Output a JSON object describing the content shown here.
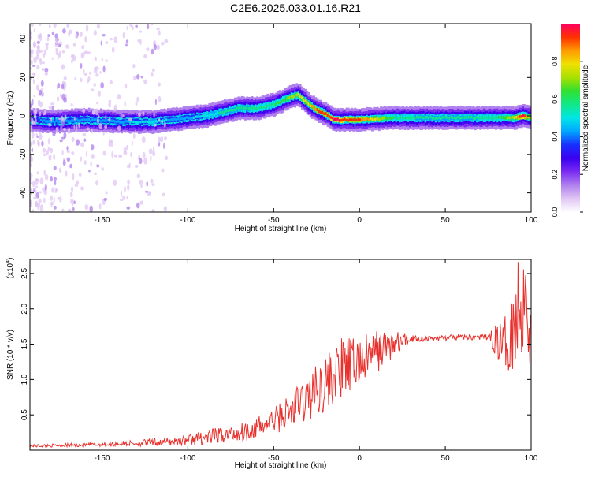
{
  "title": "C2E6.2025.033.01.16.R21",
  "colors": {
    "snr_line": "#e8302c",
    "axis": "#000000",
    "background": "#ffffff",
    "colormap": [
      "#ffffff",
      "#e0c6f4",
      "#b080ee",
      "#7a2cf2",
      "#3a00f0",
      "#1830ff",
      "#00a6ff",
      "#00e6e6",
      "#10e888",
      "#30e030",
      "#a8e000",
      "#f0e000",
      "#ff9a00",
      "#ff3000",
      "#ff0060"
    ]
  },
  "chart_data": [
    {
      "type": "heatmap",
      "name": "spectrogram",
      "xlabel": "Height of straight line (km)",
      "ylabel": "Frequency (Hz)",
      "xlim": [
        -192,
        100
      ],
      "ylim": [
        -50,
        48
      ],
      "xticks": [
        -150,
        -100,
        -50,
        0,
        50,
        100
      ],
      "yticks": [
        -40,
        -20,
        0,
        20,
        40
      ],
      "colorbar": {
        "label": "Normalized spectral amplitude",
        "range": [
          0,
          1
        ],
        "ticks": [
          0.0,
          0.2,
          0.4,
          0.6,
          0.8
        ]
      },
      "ridge": {
        "x": [
          -192,
          -180,
          -160,
          -140,
          -120,
          -110,
          -100,
          -90,
          -80,
          -70,
          -60,
          -50,
          -40,
          -36,
          -30,
          -25,
          -20,
          -15,
          -10,
          0,
          20,
          50,
          80,
          90,
          95,
          100
        ],
        "y": [
          -2,
          -3,
          -2,
          -3,
          -3,
          -2,
          -1,
          0,
          2,
          4,
          4,
          6,
          10,
          11,
          6,
          3,
          1,
          -2,
          -2,
          -2,
          -1,
          -1,
          -1,
          -1,
          0,
          -1
        ],
        "peak_amplitude": [
          0.35,
          0.45,
          0.4,
          0.45,
          0.5,
          0.45,
          0.45,
          0.5,
          0.55,
          0.55,
          0.6,
          0.6,
          0.7,
          0.75,
          0.8,
          0.9,
          0.9,
          1.0,
          0.95,
          0.9,
          0.6,
          0.55,
          0.6,
          0.75,
          1.0,
          0.6
        ]
      }
    },
    {
      "type": "line",
      "name": "snr",
      "xlabel": "Height of straight line (km)",
      "ylabel": "SNR (10 * v/v)",
      "ylabel_multiplier": "(x10",
      "ylabel_multiplier_exp": "4",
      "ylabel_multiplier_close": ")",
      "xlim": [
        -192,
        100
      ],
      "ylim": [
        0,
        2.7
      ],
      "xticks": [
        -150,
        -100,
        -50,
        0,
        50,
        100
      ],
      "yticks": [
        0.5,
        1.0,
        1.5,
        2.0,
        2.5
      ],
      "envelope": {
        "x": [
          -192,
          -150,
          -110,
          -90,
          -70,
          -55,
          -48,
          -40,
          -30,
          -20,
          -10,
          0,
          10,
          20,
          30,
          40,
          60,
          75,
          80,
          85,
          90,
          94,
          97,
          100
        ],
        "y": [
          0.06,
          0.08,
          0.12,
          0.18,
          0.25,
          0.35,
          0.45,
          0.55,
          0.75,
          0.95,
          1.15,
          1.25,
          1.4,
          1.5,
          1.58,
          1.58,
          1.6,
          1.6,
          1.55,
          1.5,
          1.8,
          2.1,
          2.4,
          1.4
        ],
        "noise": [
          0.02,
          0.03,
          0.06,
          0.1,
          0.14,
          0.16,
          0.2,
          0.28,
          0.35,
          0.4,
          0.45,
          0.35,
          0.3,
          0.2,
          0.06,
          0.04,
          0.04,
          0.04,
          0.25,
          0.4,
          0.65,
          0.9,
          0.9,
          0.5
        ]
      }
    }
  ]
}
